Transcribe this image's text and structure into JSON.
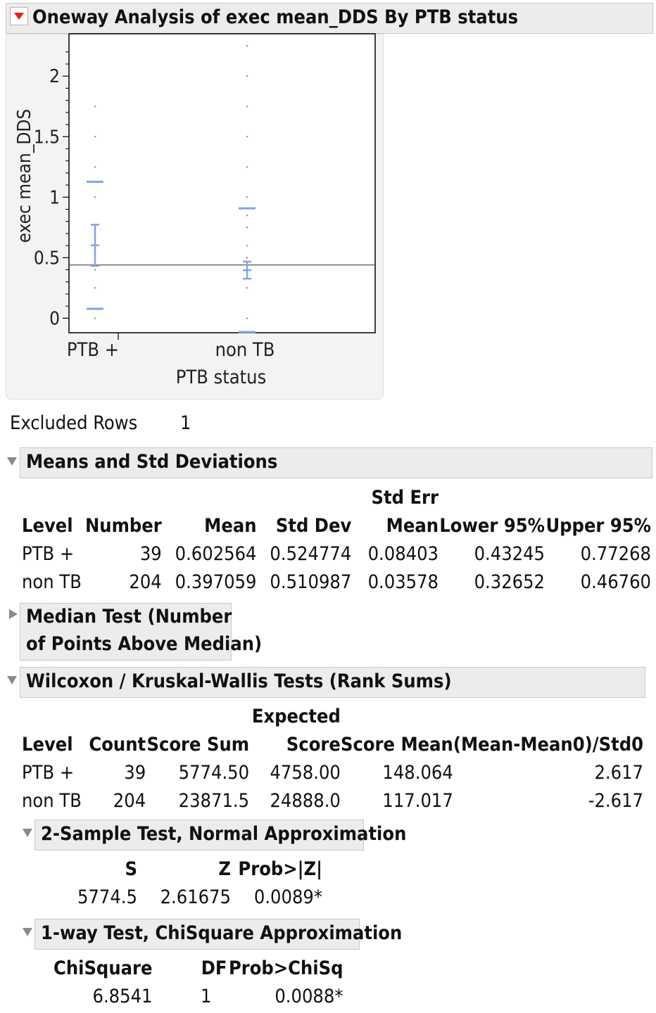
{
  "report": {
    "title": "Oneway Analysis of exec mean_DDS By PTB status"
  },
  "chart_data": {
    "type": "scatter",
    "ylabel": "exec mean_DDS",
    "xlabel": "PTB status",
    "categories": [
      "PTB +",
      "non TB"
    ],
    "y_ticks": [
      "0",
      "0.5",
      "1",
      "1.5",
      "2"
    ],
    "ylim": [
      -0.12,
      2.35
    ],
    "grand_mean": 0.44,
    "points": [
      {
        "group": "PTB +",
        "y": [
          0.0,
          0.25,
          0.4,
          0.55,
          0.6,
          0.65,
          0.75,
          1.0,
          1.25,
          1.5,
          1.75
        ]
      },
      {
        "group": "non TB",
        "y": [
          0.0,
          0.25,
          0.4,
          0.5,
          0.6,
          0.75,
          0.85,
          1.0,
          1.25,
          1.5,
          1.75,
          2.0,
          2.25
        ]
      }
    ],
    "means": [
      0.602564,
      0.397059
    ],
    "ci_lower": [
      0.43245,
      0.32652
    ],
    "ci_upper": [
      0.77268,
      0.4676
    ],
    "sd_upper": [
      1.127338,
      0.908046
    ],
    "sd_lower": [
      0.07779,
      -0.113928
    ]
  },
  "excluded": {
    "label": "Excluded Rows",
    "value": "1"
  },
  "means_sd": {
    "title": "Means and Std Deviations",
    "headers": {
      "level": "Level",
      "number": "Number",
      "mean": "Mean",
      "std_dev": "Std Dev",
      "std_err_1": "Std Err",
      "std_err_2": "Mean",
      "lower": "Lower 95%",
      "upper": "Upper 95%"
    },
    "rows": [
      {
        "level": "PTB +",
        "number": "39",
        "mean": "0.602564",
        "std_dev": "0.524774",
        "std_err": "0.08403",
        "lower": "0.43245",
        "upper": "0.77268"
      },
      {
        "level": "non TB",
        "number": "204",
        "mean": "0.397059",
        "std_dev": "0.510987",
        "std_err": "0.03578",
        "lower": "0.32652",
        "upper": "0.46760"
      }
    ]
  },
  "median_test": {
    "title_line1": "Median Test (Number",
    "title_line2": "of Points Above Median)"
  },
  "wilcoxon": {
    "title": "Wilcoxon / Kruskal-Wallis Tests (Rank Sums)",
    "headers": {
      "level": "Level",
      "count": "Count",
      "score_sum": "Score Sum",
      "exp_1": "Expected",
      "exp_2": "Score",
      "score_mean": "Score Mean",
      "std": "(Mean-Mean0)/Std0"
    },
    "rows": [
      {
        "level": "PTB +",
        "count": "39",
        "score_sum": "5774.50",
        "expected": "4758.00",
        "score_mean": "148.064",
        "std": "2.617"
      },
      {
        "level": "non TB",
        "count": "204",
        "score_sum": "23871.5",
        "expected": "24888.0",
        "score_mean": "117.017",
        "std": "-2.617"
      }
    ]
  },
  "two_sample": {
    "title": "2-Sample Test, Normal Approximation",
    "headers": {
      "s": "S",
      "z": "Z",
      "p": "Prob>|Z|"
    },
    "values": {
      "s": "5774.5",
      "z": "2.61675",
      "p": "0.0089*"
    }
  },
  "one_way": {
    "title": "1-way Test, ChiSquare Approximation",
    "headers": {
      "chisq": "ChiSquare",
      "df": "DF",
      "p": "Prob>ChiSq"
    },
    "values": {
      "chisq": "6.8541",
      "df": "1",
      "p": "0.0088*"
    }
  }
}
